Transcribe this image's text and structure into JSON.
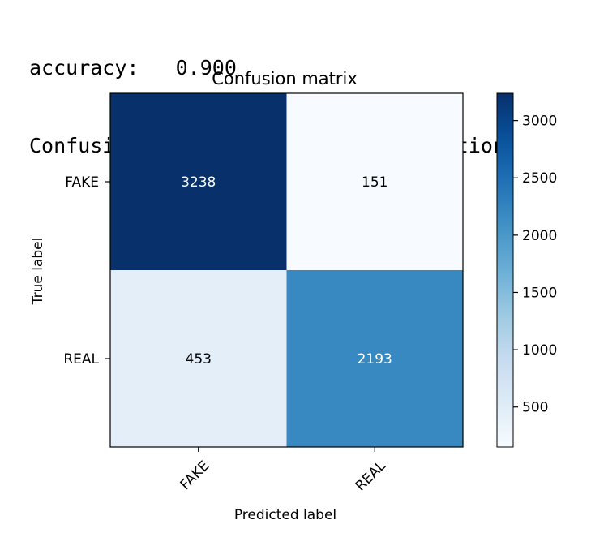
{
  "console": {
    "line1": "accuracy:   0.900",
    "line2": "Confusion matrix, without normalization"
  },
  "chart_data": {
    "type": "heatmap",
    "title": "Confusion matrix",
    "xlabel": "Predicted label",
    "ylabel": "True label",
    "x_categories": [
      "FAKE",
      "REAL"
    ],
    "y_categories": [
      "FAKE",
      "REAL"
    ],
    "values": [
      [
        3238,
        151
      ],
      [
        453,
        2193
      ]
    ],
    "colormap": "Blues",
    "colorbar": {
      "ticks": [
        500,
        1000,
        1500,
        2000,
        2500,
        3000
      ],
      "tick_labels": [
        "500",
        "1000",
        "1500",
        "2000",
        "2500",
        "3000"
      ],
      "range": [
        151,
        3238
      ]
    },
    "colors": {
      "low": "#f7fbff",
      "high": "#08306b",
      "text_dark": "#000000",
      "text_light": "#ffffff"
    }
  }
}
